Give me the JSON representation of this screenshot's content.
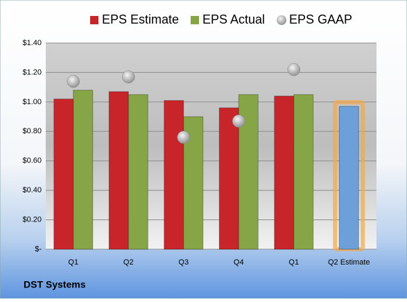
{
  "chart_data": {
    "type": "bar",
    "categories": [
      "Q1",
      "Q2",
      "Q3",
      "Q4",
      "Q1",
      "Q2 Estimate"
    ],
    "series": [
      {
        "name": "EPS Estimate",
        "color": "#c8252b",
        "values": [
          1.02,
          1.07,
          1.01,
          0.96,
          1.04,
          0.97
        ],
        "colors": [
          "#c8252b",
          "#c8252b",
          "#c8252b",
          "#c8252b",
          "#c8252b",
          "#6d9fd8"
        ]
      },
      {
        "name": "EPS Actual",
        "color": "#86a546",
        "values": [
          1.08,
          1.05,
          0.9,
          1.05,
          1.05,
          null
        ]
      },
      {
        "name": "EPS GAAP",
        "color": "#a9a9a9",
        "marker": "circle",
        "values": [
          1.14,
          1.17,
          0.76,
          0.87,
          1.22,
          null
        ]
      }
    ],
    "ylim": [
      0,
      1.4
    ],
    "yticks": [
      {
        "value": 0,
        "label": "$-"
      },
      {
        "value": 0.2,
        "label": "$0.20"
      },
      {
        "value": 0.4,
        "label": "$0.40"
      },
      {
        "value": 0.6,
        "label": "$0.60"
      },
      {
        "value": 0.8,
        "label": "$0.80"
      },
      {
        "value": 1.0,
        "label": "$1.00"
      },
      {
        "value": 1.2,
        "label": "$1.20"
      },
      {
        "value": 1.4,
        "label": "$1.40"
      }
    ],
    "grid": true,
    "legend": "top",
    "footer": "DST Systems"
  }
}
